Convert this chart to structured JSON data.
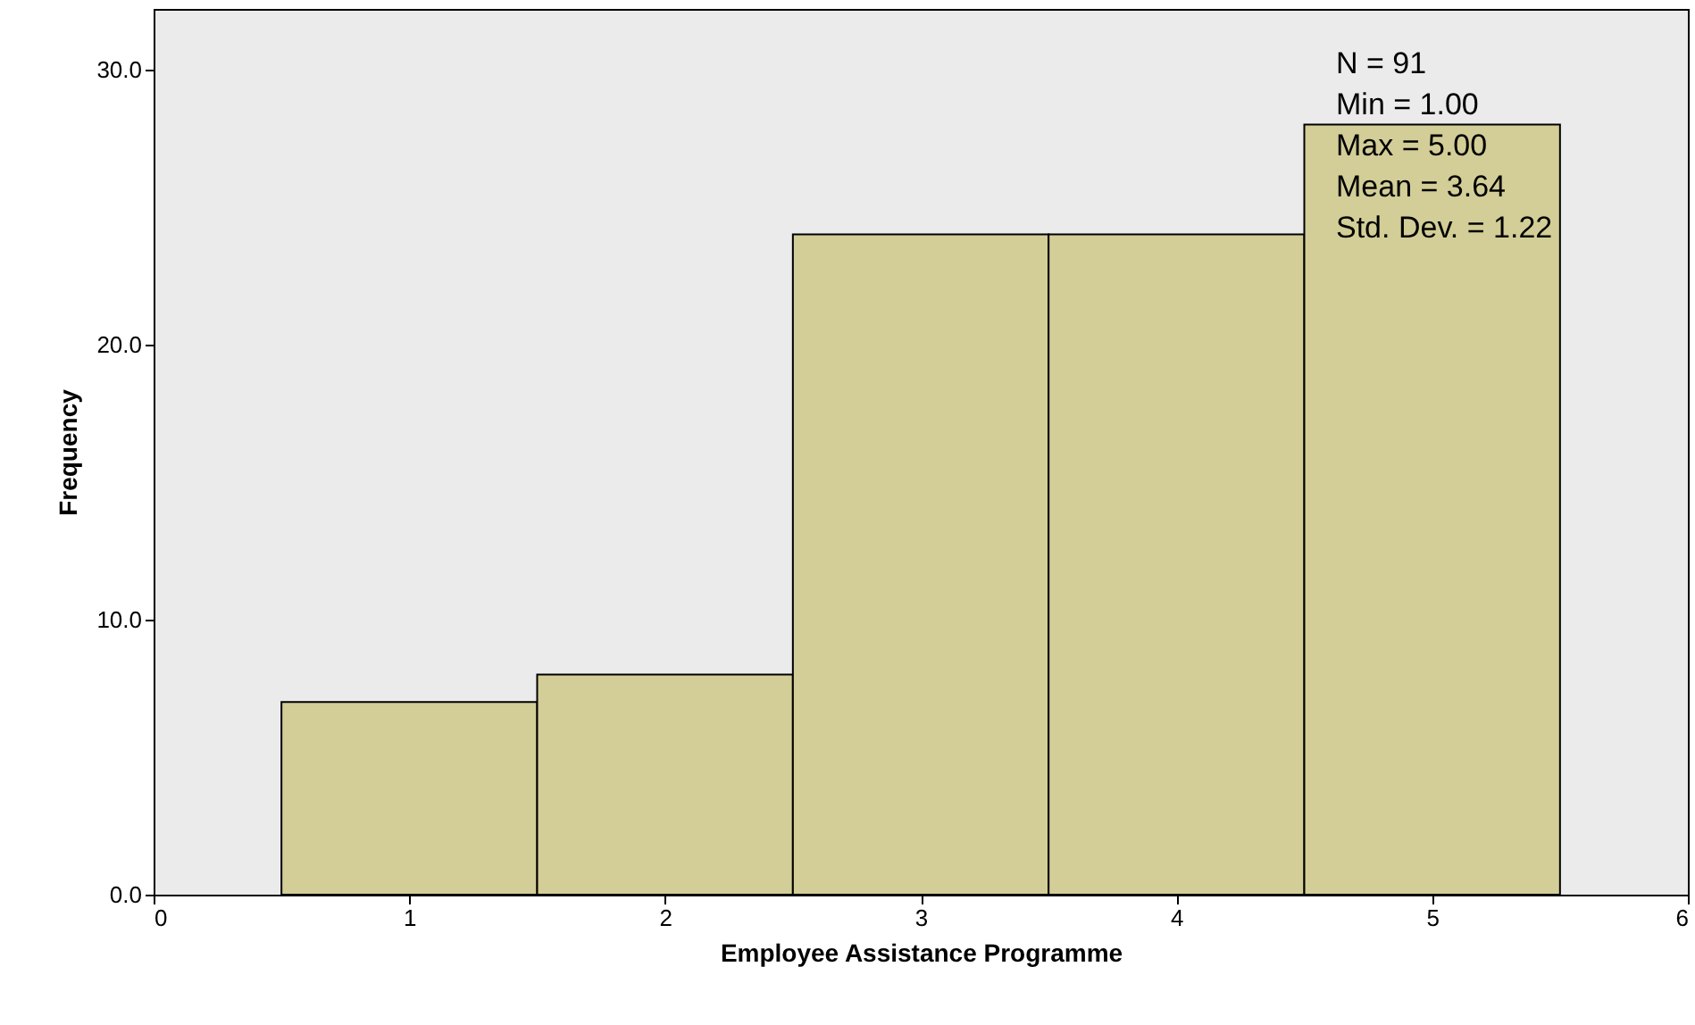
{
  "chart_data": {
    "type": "histogram",
    "xlabel": "Employee Assistance Programme",
    "ylabel": "Frequency",
    "bins": [
      0.5,
      1.5,
      2.5,
      3.5,
      4.5,
      5.5
    ],
    "values": [
      7,
      8,
      24,
      24,
      28
    ],
    "color": "#d3ce97",
    "xlim": [
      0,
      6
    ],
    "xticks": [
      0,
      1,
      2,
      3,
      4,
      5,
      6
    ],
    "ylim": [
      0,
      32.2
    ],
    "yticks": [
      {
        "value": 0,
        "label": "0.0"
      },
      {
        "value": 10,
        "label": "10.0"
      },
      {
        "value": 20,
        "label": "20.0"
      },
      {
        "value": 30,
        "label": "30.0"
      }
    ],
    "annotations": [
      "N = 91",
      "Min = 1.00",
      "Max = 5.00",
      "Mean = 3.64",
      "Std. Dev. = 1.22"
    ]
  }
}
